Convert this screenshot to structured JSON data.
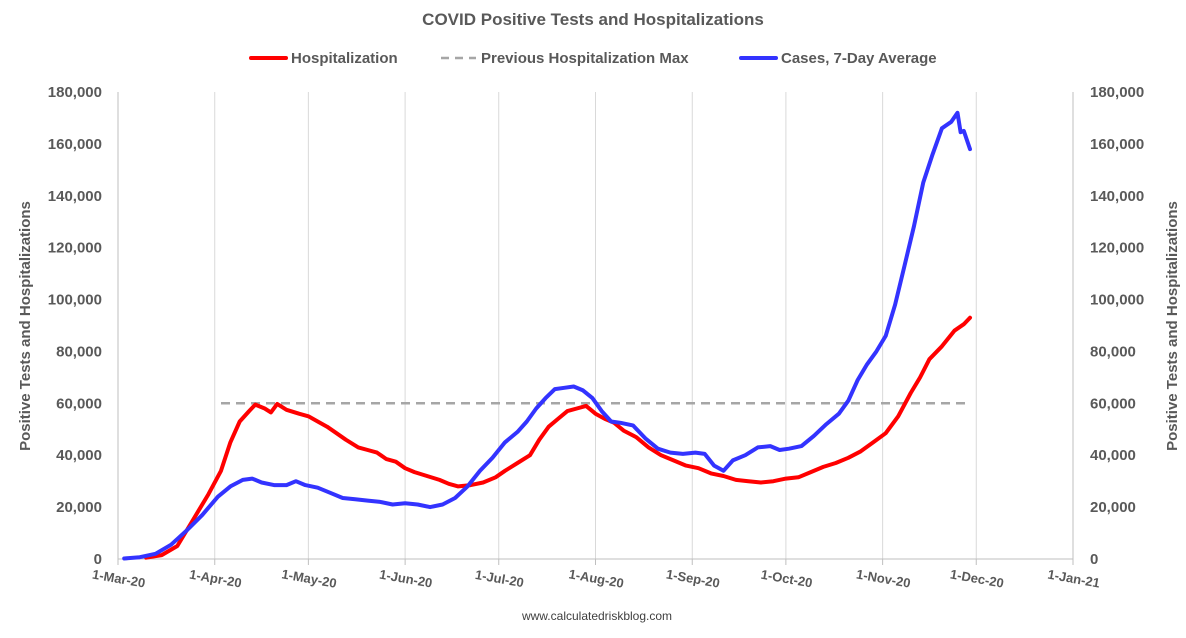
{
  "chart_data": {
    "type": "line",
    "title": "COVID Positive Tests and Hospitalizations",
    "ylabel": "Positive Tests and Hospitalizations",
    "ylabel_right": "Positive Tests and Hospitalizations",
    "ylim": [
      0,
      180000
    ],
    "y_ticks": [
      "0",
      "20,000",
      "40,000",
      "60,000",
      "80,000",
      "100,000",
      "120,000",
      "140,000",
      "160,000",
      "180,000"
    ],
    "x_range": [
      "2020-03-01",
      "2021-01-01"
    ],
    "x_ticks": [
      {
        "date": "2020-03-01",
        "label": "1-Mar-20"
      },
      {
        "date": "2020-04-01",
        "label": "1-Apr-20"
      },
      {
        "date": "2020-05-01",
        "label": "1-May-20"
      },
      {
        "date": "2020-06-01",
        "label": "1-Jun-20"
      },
      {
        "date": "2020-07-01",
        "label": "1-Jul-20"
      },
      {
        "date": "2020-08-01",
        "label": "1-Aug-20"
      },
      {
        "date": "2020-09-01",
        "label": "1-Sep-20"
      },
      {
        "date": "2020-10-01",
        "label": "1-Oct-20"
      },
      {
        "date": "2020-11-01",
        "label": "1-Nov-20"
      },
      {
        "date": "2020-12-01",
        "label": "1-Dec-20"
      },
      {
        "date": "2021-01-01",
        "label": "1-Jan-21"
      }
    ],
    "grid": "vertical",
    "legend_position": "top",
    "footer": "www.calculatedriskblog.com",
    "series": [
      {
        "name": "Hospitalization",
        "color": "#ff0000",
        "style": "solid",
        "points": [
          [
            "2020-03-10",
            500
          ],
          [
            "2020-03-15",
            1500
          ],
          [
            "2020-03-20",
            5000
          ],
          [
            "2020-03-25",
            15000
          ],
          [
            "2020-03-30",
            25000
          ],
          [
            "2020-04-03",
            34000
          ],
          [
            "2020-04-06",
            45000
          ],
          [
            "2020-04-09",
            53000
          ],
          [
            "2020-04-12",
            57000
          ],
          [
            "2020-04-14",
            59500
          ],
          [
            "2020-04-17",
            58000
          ],
          [
            "2020-04-19",
            56500
          ],
          [
            "2020-04-21",
            59800
          ],
          [
            "2020-04-24",
            57500
          ],
          [
            "2020-04-28",
            56000
          ],
          [
            "2020-05-01",
            55000
          ],
          [
            "2020-05-04",
            53000
          ],
          [
            "2020-05-07",
            51000
          ],
          [
            "2020-05-10",
            48500
          ],
          [
            "2020-05-13",
            46000
          ],
          [
            "2020-05-17",
            43000
          ],
          [
            "2020-05-20",
            42000
          ],
          [
            "2020-05-23",
            41000
          ],
          [
            "2020-05-26",
            38500
          ],
          [
            "2020-05-29",
            37500
          ],
          [
            "2020-06-01",
            35000
          ],
          [
            "2020-06-04",
            33500
          ],
          [
            "2020-06-08",
            32000
          ],
          [
            "2020-06-12",
            30500
          ],
          [
            "2020-06-15",
            29000
          ],
          [
            "2020-06-18",
            28000
          ],
          [
            "2020-06-22",
            28500
          ],
          [
            "2020-06-26",
            29500
          ],
          [
            "2020-06-30",
            31500
          ],
          [
            "2020-07-03",
            34000
          ],
          [
            "2020-07-07",
            37000
          ],
          [
            "2020-07-11",
            40000
          ],
          [
            "2020-07-14",
            46000
          ],
          [
            "2020-07-17",
            51000
          ],
          [
            "2020-07-20",
            54000
          ],
          [
            "2020-07-23",
            57000
          ],
          [
            "2020-07-26",
            58000
          ],
          [
            "2020-07-29",
            59000
          ],
          [
            "2020-08-01",
            56000
          ],
          [
            "2020-08-04",
            54000
          ],
          [
            "2020-08-07",
            52500
          ],
          [
            "2020-08-10",
            49500
          ],
          [
            "2020-08-14",
            47000
          ],
          [
            "2020-08-18",
            43000
          ],
          [
            "2020-08-22",
            40000
          ],
          [
            "2020-08-26",
            38000
          ],
          [
            "2020-08-30",
            36000
          ],
          [
            "2020-09-03",
            35000
          ],
          [
            "2020-09-07",
            33000
          ],
          [
            "2020-09-11",
            32000
          ],
          [
            "2020-09-15",
            30500
          ],
          [
            "2020-09-19",
            30000
          ],
          [
            "2020-09-23",
            29500
          ],
          [
            "2020-09-27",
            30000
          ],
          [
            "2020-10-01",
            31000
          ],
          [
            "2020-10-05",
            31500
          ],
          [
            "2020-10-09",
            33500
          ],
          [
            "2020-10-13",
            35500
          ],
          [
            "2020-10-17",
            37000
          ],
          [
            "2020-10-21",
            39000
          ],
          [
            "2020-10-25",
            41500
          ],
          [
            "2020-10-29",
            45000
          ],
          [
            "2020-11-02",
            48500
          ],
          [
            "2020-11-06",
            55000
          ],
          [
            "2020-11-10",
            64000
          ],
          [
            "2020-11-13",
            70000
          ],
          [
            "2020-11-16",
            77000
          ],
          [
            "2020-11-20",
            82000
          ],
          [
            "2020-11-24",
            88000
          ],
          [
            "2020-11-27",
            90500
          ],
          [
            "2020-11-29",
            93000
          ]
        ]
      },
      {
        "name": "Previous Hospitalization Max",
        "color": "#a6a6a6",
        "style": "dashed",
        "points": [
          [
            "2020-04-03",
            60000
          ],
          [
            "2020-11-29",
            60000
          ]
        ]
      },
      {
        "name": "Cases, 7-Day Average",
        "color": "#3333ff",
        "style": "solid",
        "points": [
          [
            "2020-03-03",
            200
          ],
          [
            "2020-03-08",
            700
          ],
          [
            "2020-03-13",
            2000
          ],
          [
            "2020-03-18",
            5500
          ],
          [
            "2020-03-23",
            11000
          ],
          [
            "2020-03-28",
            17000
          ],
          [
            "2020-04-02",
            24000
          ],
          [
            "2020-04-06",
            28000
          ],
          [
            "2020-04-10",
            30500
          ],
          [
            "2020-04-13",
            31000
          ],
          [
            "2020-04-16",
            29500
          ],
          [
            "2020-04-20",
            28500
          ],
          [
            "2020-04-24",
            28500
          ],
          [
            "2020-04-27",
            30000
          ],
          [
            "2020-04-30",
            28500
          ],
          [
            "2020-05-04",
            27500
          ],
          [
            "2020-05-08",
            25500
          ],
          [
            "2020-05-12",
            23500
          ],
          [
            "2020-05-16",
            23000
          ],
          [
            "2020-05-20",
            22500
          ],
          [
            "2020-05-24",
            22000
          ],
          [
            "2020-05-28",
            21000
          ],
          [
            "2020-06-01",
            21500
          ],
          [
            "2020-06-05",
            21000
          ],
          [
            "2020-06-09",
            20000
          ],
          [
            "2020-06-13",
            21000
          ],
          [
            "2020-06-17",
            23500
          ],
          [
            "2020-06-21",
            28000
          ],
          [
            "2020-06-25",
            34000
          ],
          [
            "2020-06-29",
            39000
          ],
          [
            "2020-07-03",
            45000
          ],
          [
            "2020-07-07",
            49000
          ],
          [
            "2020-07-10",
            53000
          ],
          [
            "2020-07-13",
            58000
          ],
          [
            "2020-07-16",
            62000
          ],
          [
            "2020-07-19",
            65500
          ],
          [
            "2020-07-22",
            66000
          ],
          [
            "2020-07-25",
            66500
          ],
          [
            "2020-07-28",
            65000
          ],
          [
            "2020-07-31",
            62000
          ],
          [
            "2020-08-03",
            57000
          ],
          [
            "2020-08-06",
            53000
          ],
          [
            "2020-08-09",
            52500
          ],
          [
            "2020-08-13",
            51500
          ],
          [
            "2020-08-17",
            46500
          ],
          [
            "2020-08-21",
            42500
          ],
          [
            "2020-08-25",
            41000
          ],
          [
            "2020-08-29",
            40500
          ],
          [
            "2020-09-02",
            41000
          ],
          [
            "2020-09-05",
            40500
          ],
          [
            "2020-09-08",
            36000
          ],
          [
            "2020-09-11",
            34000
          ],
          [
            "2020-09-14",
            38000
          ],
          [
            "2020-09-18",
            40000
          ],
          [
            "2020-09-22",
            43000
          ],
          [
            "2020-09-26",
            43500
          ],
          [
            "2020-09-29",
            42000
          ],
          [
            "2020-10-02",
            42500
          ],
          [
            "2020-10-06",
            43500
          ],
          [
            "2020-10-10",
            47500
          ],
          [
            "2020-10-14",
            52000
          ],
          [
            "2020-10-18",
            56000
          ],
          [
            "2020-10-21",
            61000
          ],
          [
            "2020-10-24",
            69000
          ],
          [
            "2020-10-27",
            75000
          ],
          [
            "2020-10-30",
            80000
          ],
          [
            "2020-11-02",
            86000
          ],
          [
            "2020-11-05",
            98000
          ],
          [
            "2020-11-08",
            113000
          ],
          [
            "2020-11-11",
            128000
          ],
          [
            "2020-11-14",
            145000
          ],
          [
            "2020-11-17",
            156000
          ],
          [
            "2020-11-20",
            166000
          ],
          [
            "2020-11-23",
            168500
          ],
          [
            "2020-11-25",
            172000
          ],
          [
            "2020-11-26",
            164500
          ],
          [
            "2020-11-27",
            165000
          ],
          [
            "2020-11-29",
            158000
          ]
        ]
      }
    ]
  }
}
